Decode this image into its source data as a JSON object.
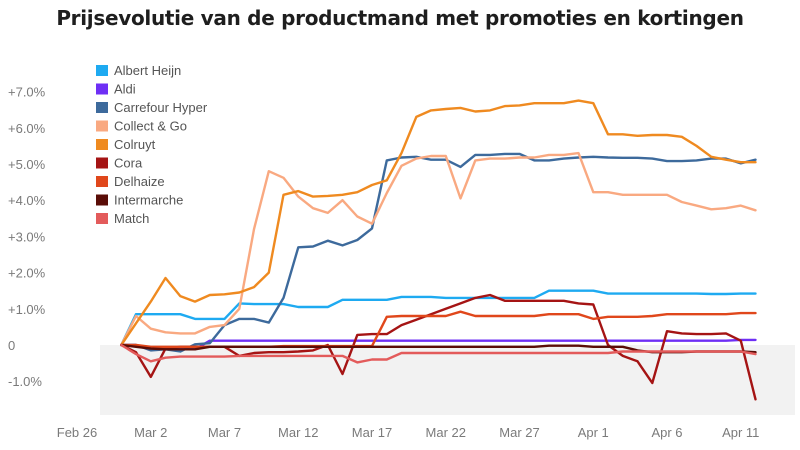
{
  "chart_data": {
    "type": "line",
    "title": "Prijsevolutie van de productmand met promoties en kortingen",
    "xlabel": "",
    "ylabel": "",
    "x_range_days": [
      0,
      47
    ],
    "ylim": [
      -1.9,
      7.3
    ],
    "y_ticks": [
      {
        "value": 7,
        "label": "+7.0%"
      },
      {
        "value": 6,
        "label": "+6.0%"
      },
      {
        "value": 5,
        "label": "+5.0%"
      },
      {
        "value": 4,
        "label": "+4.0%"
      },
      {
        "value": 3,
        "label": "+3.0%"
      },
      {
        "value": 2,
        "label": "+2.0%"
      },
      {
        "value": 1,
        "label": "+1.0%"
      },
      {
        "value": 0,
        "label": "0"
      },
      {
        "value": -1,
        "label": "-1.0%"
      }
    ],
    "x_ticks": [
      {
        "day": 0,
        "label": "Feb 26"
      },
      {
        "day": 5,
        "label": "Mar 2"
      },
      {
        "day": 10,
        "label": "Mar 7"
      },
      {
        "day": 15,
        "label": "Mar 12"
      },
      {
        "day": 20,
        "label": "Mar 17"
      },
      {
        "day": 25,
        "label": "Mar 22"
      },
      {
        "day": 30,
        "label": "Mar 27"
      },
      {
        "day": 35,
        "label": "Apr 1"
      },
      {
        "day": 40,
        "label": "Apr 6"
      },
      {
        "day": 45,
        "label": "Apr 11"
      }
    ],
    "negative_band_color": "#f2f2f2",
    "legend_position": "top-left",
    "series": [
      {
        "name": "Albert Heijn",
        "color": "#1eaaf1",
        "start_day": 3,
        "values": [
          0,
          0.85,
          0.85,
          0.85,
          0.85,
          0.72,
          0.72,
          0.72,
          1.15,
          1.13,
          1.13,
          1.13,
          1.05,
          1.05,
          1.05,
          1.25,
          1.25,
          1.25,
          1.25,
          1.33,
          1.33,
          1.33,
          1.3,
          1.3,
          1.3,
          1.3,
          1.3,
          1.3,
          1.3,
          1.5,
          1.5,
          1.5,
          1.5,
          1.42,
          1.42,
          1.42,
          1.42,
          1.42,
          1.42,
          1.42,
          1.41,
          1.41,
          1.42,
          1.42
        ]
      },
      {
        "name": "Aldi",
        "color": "#6e2ff5",
        "start_day": 3,
        "values": [
          0,
          0,
          -0.1,
          -0.12,
          -0.12,
          -0.12,
          0.12,
          0.12,
          0.12,
          0.12,
          0.12,
          0.12,
          0.12,
          0.12,
          0.12,
          0.12,
          0.12,
          0.12,
          0.12,
          0.12,
          0.12,
          0.12,
          0.12,
          0.12,
          0.12,
          0.12,
          0.12,
          0.12,
          0.12,
          0.12,
          0.12,
          0.12,
          0.12,
          0.12,
          0.12,
          0.12,
          0.12,
          0.12,
          0.12,
          0.12,
          0.12,
          0.12,
          0.14,
          0.14
        ]
      },
      {
        "name": "Carrefour Hyper",
        "color": "#3d6a9c",
        "start_day": 3,
        "values": [
          0,
          0,
          -0.15,
          -0.12,
          -0.18,
          0.02,
          0.05,
          0.55,
          0.72,
          0.72,
          0.62,
          1.3,
          2.7,
          2.72,
          2.88,
          2.75,
          2.9,
          3.22,
          5.1,
          5.18,
          5.2,
          5.12,
          5.12,
          4.92,
          5.25,
          5.25,
          5.28,
          5.28,
          5.1,
          5.1,
          5.15,
          5.18,
          5.2,
          5.18,
          5.17,
          5.17,
          5.15,
          5.08,
          5.08,
          5.1,
          5.15,
          5.15,
          5.02,
          5.12
        ]
      },
      {
        "name": "Collect & Go",
        "color": "#f9a981",
        "start_day": 3,
        "values": [
          0,
          0.8,
          0.45,
          0.35,
          0.32,
          0.32,
          0.5,
          0.55,
          1.0,
          3.2,
          4.8,
          4.62,
          4.1,
          3.78,
          3.65,
          4.0,
          3.55,
          3.35,
          4.2,
          4.95,
          5.15,
          5.22,
          5.22,
          4.05,
          5.1,
          5.15,
          5.15,
          5.18,
          5.18,
          5.25,
          5.25,
          5.3,
          4.22,
          4.22,
          4.15,
          4.15,
          4.15,
          4.15,
          3.95,
          3.85,
          3.75,
          3.78,
          3.85,
          3.72
        ]
      },
      {
        "name": "Colruyt",
        "color": "#ef8a20",
        "start_day": 3,
        "values": [
          0,
          0.6,
          1.2,
          1.85,
          1.35,
          1.2,
          1.38,
          1.4,
          1.45,
          1.6,
          2.0,
          4.15,
          4.25,
          4.1,
          4.12,
          4.15,
          4.22,
          4.42,
          4.55,
          5.3,
          6.3,
          6.48,
          6.52,
          6.55,
          6.45,
          6.48,
          6.6,
          6.62,
          6.68,
          6.68,
          6.68,
          6.75,
          6.68,
          5.82,
          5.82,
          5.78,
          5.8,
          5.8,
          5.75,
          5.5,
          5.2,
          5.12,
          5.05,
          5.05
        ]
      },
      {
        "name": "Cora",
        "color": "#a51414",
        "start_day": 3,
        "values": [
          0,
          -0.2,
          -0.88,
          -0.1,
          -0.05,
          -0.05,
          -0.05,
          -0.05,
          -0.3,
          -0.22,
          -0.2,
          -0.2,
          -0.18,
          -0.15,
          0,
          -0.8,
          0.28,
          0.3,
          0.3,
          0.55,
          0.7,
          0.85,
          1.0,
          1.15,
          1.3,
          1.38,
          1.22,
          1.22,
          1.22,
          1.22,
          1.22,
          1.15,
          1.12,
          0,
          -0.3,
          -0.45,
          -1.05,
          0.38,
          0.32,
          0.3,
          0.3,
          0.32,
          0.12,
          -1.5
        ]
      },
      {
        "name": "Delhaize",
        "color": "#e0471b",
        "start_day": 3,
        "values": [
          0,
          0,
          -0.05,
          -0.05,
          -0.05,
          -0.05,
          -0.05,
          -0.05,
          -0.05,
          -0.05,
          -0.05,
          -0.03,
          -0.03,
          -0.03,
          -0.03,
          -0.03,
          -0.03,
          -0.03,
          0.78,
          0.8,
          0.8,
          0.8,
          0.8,
          0.92,
          0.8,
          0.8,
          0.8,
          0.8,
          0.8,
          0.85,
          0.85,
          0.85,
          0.72,
          0.78,
          0.78,
          0.78,
          0.8,
          0.85,
          0.85,
          0.85,
          0.85,
          0.85,
          0.88,
          0.88
        ]
      },
      {
        "name": "Intermarche",
        "color": "#5a0d07",
        "start_day": 3,
        "values": [
          0,
          -0.05,
          -0.1,
          -0.12,
          -0.12,
          -0.12,
          -0.05,
          -0.05,
          -0.05,
          -0.05,
          -0.05,
          -0.05,
          -0.05,
          -0.05,
          -0.05,
          -0.05,
          -0.05,
          -0.05,
          -0.05,
          -0.05,
          -0.05,
          -0.05,
          -0.05,
          -0.05,
          -0.05,
          -0.05,
          -0.05,
          -0.05,
          -0.05,
          -0.02,
          -0.02,
          -0.02,
          -0.05,
          -0.05,
          -0.05,
          -0.15,
          -0.2,
          -0.2,
          -0.2,
          -0.18,
          -0.18,
          -0.18,
          -0.18,
          -0.2
        ]
      },
      {
        "name": "Match",
        "color": "#e35b5b",
        "start_day": 3,
        "values": [
          0,
          -0.25,
          -0.45,
          -0.35,
          -0.32,
          -0.32,
          -0.32,
          -0.32,
          -0.3,
          -0.3,
          -0.3,
          -0.3,
          -0.3,
          -0.3,
          -0.3,
          -0.3,
          -0.48,
          -0.4,
          -0.4,
          -0.22,
          -0.22,
          -0.22,
          -0.22,
          -0.22,
          -0.22,
          -0.22,
          -0.22,
          -0.22,
          -0.22,
          -0.22,
          -0.22,
          -0.22,
          -0.22,
          -0.22,
          -0.18,
          -0.18,
          -0.18,
          -0.18,
          -0.18,
          -0.18,
          -0.18,
          -0.18,
          -0.18,
          -0.25
        ]
      }
    ]
  }
}
